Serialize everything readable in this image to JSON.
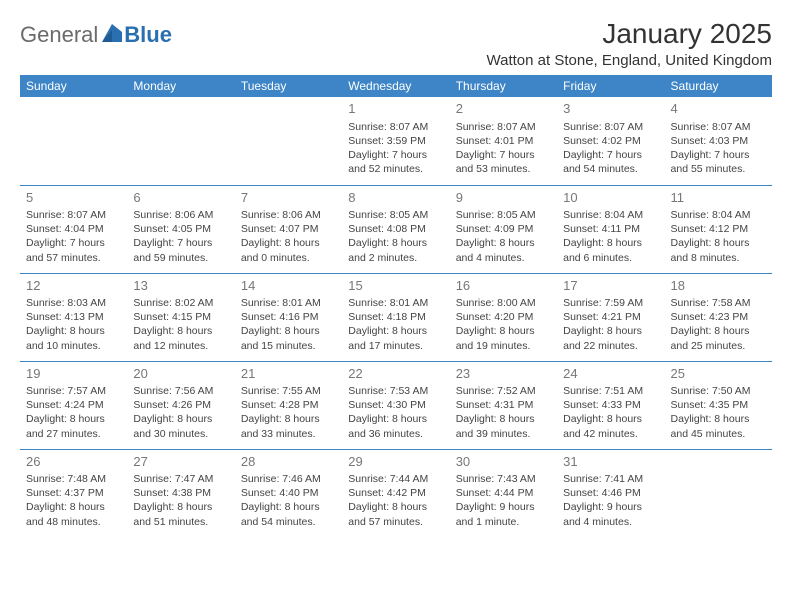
{
  "logo": {
    "text1": "General",
    "text2": "Blue",
    "text1_color": "#6b6b6b",
    "text2_color": "#2a6fb0"
  },
  "title": "January 2025",
  "location": "Watton at Stone, England, United Kingdom",
  "colors": {
    "header_bg": "#3d85c6",
    "header_text": "#ffffff",
    "row_border": "#3d85c6",
    "daynum": "#777777",
    "body_text": "#444444",
    "page_bg": "#ffffff"
  },
  "day_headers": [
    "Sunday",
    "Monday",
    "Tuesday",
    "Wednesday",
    "Thursday",
    "Friday",
    "Saturday"
  ],
  "weeks": [
    [
      null,
      null,
      null,
      {
        "n": "1",
        "sunrise": "Sunrise: 8:07 AM",
        "sunset": "Sunset: 3:59 PM",
        "day1": "Daylight: 7 hours",
        "day2": "and 52 minutes."
      },
      {
        "n": "2",
        "sunrise": "Sunrise: 8:07 AM",
        "sunset": "Sunset: 4:01 PM",
        "day1": "Daylight: 7 hours",
        "day2": "and 53 minutes."
      },
      {
        "n": "3",
        "sunrise": "Sunrise: 8:07 AM",
        "sunset": "Sunset: 4:02 PM",
        "day1": "Daylight: 7 hours",
        "day2": "and 54 minutes."
      },
      {
        "n": "4",
        "sunrise": "Sunrise: 8:07 AM",
        "sunset": "Sunset: 4:03 PM",
        "day1": "Daylight: 7 hours",
        "day2": "and 55 minutes."
      }
    ],
    [
      {
        "n": "5",
        "sunrise": "Sunrise: 8:07 AM",
        "sunset": "Sunset: 4:04 PM",
        "day1": "Daylight: 7 hours",
        "day2": "and 57 minutes."
      },
      {
        "n": "6",
        "sunrise": "Sunrise: 8:06 AM",
        "sunset": "Sunset: 4:05 PM",
        "day1": "Daylight: 7 hours",
        "day2": "and 59 minutes."
      },
      {
        "n": "7",
        "sunrise": "Sunrise: 8:06 AM",
        "sunset": "Sunset: 4:07 PM",
        "day1": "Daylight: 8 hours",
        "day2": "and 0 minutes."
      },
      {
        "n": "8",
        "sunrise": "Sunrise: 8:05 AM",
        "sunset": "Sunset: 4:08 PM",
        "day1": "Daylight: 8 hours",
        "day2": "and 2 minutes."
      },
      {
        "n": "9",
        "sunrise": "Sunrise: 8:05 AM",
        "sunset": "Sunset: 4:09 PM",
        "day1": "Daylight: 8 hours",
        "day2": "and 4 minutes."
      },
      {
        "n": "10",
        "sunrise": "Sunrise: 8:04 AM",
        "sunset": "Sunset: 4:11 PM",
        "day1": "Daylight: 8 hours",
        "day2": "and 6 minutes."
      },
      {
        "n": "11",
        "sunrise": "Sunrise: 8:04 AM",
        "sunset": "Sunset: 4:12 PM",
        "day1": "Daylight: 8 hours",
        "day2": "and 8 minutes."
      }
    ],
    [
      {
        "n": "12",
        "sunrise": "Sunrise: 8:03 AM",
        "sunset": "Sunset: 4:13 PM",
        "day1": "Daylight: 8 hours",
        "day2": "and 10 minutes."
      },
      {
        "n": "13",
        "sunrise": "Sunrise: 8:02 AM",
        "sunset": "Sunset: 4:15 PM",
        "day1": "Daylight: 8 hours",
        "day2": "and 12 minutes."
      },
      {
        "n": "14",
        "sunrise": "Sunrise: 8:01 AM",
        "sunset": "Sunset: 4:16 PM",
        "day1": "Daylight: 8 hours",
        "day2": "and 15 minutes."
      },
      {
        "n": "15",
        "sunrise": "Sunrise: 8:01 AM",
        "sunset": "Sunset: 4:18 PM",
        "day1": "Daylight: 8 hours",
        "day2": "and 17 minutes."
      },
      {
        "n": "16",
        "sunrise": "Sunrise: 8:00 AM",
        "sunset": "Sunset: 4:20 PM",
        "day1": "Daylight: 8 hours",
        "day2": "and 19 minutes."
      },
      {
        "n": "17",
        "sunrise": "Sunrise: 7:59 AM",
        "sunset": "Sunset: 4:21 PM",
        "day1": "Daylight: 8 hours",
        "day2": "and 22 minutes."
      },
      {
        "n": "18",
        "sunrise": "Sunrise: 7:58 AM",
        "sunset": "Sunset: 4:23 PM",
        "day1": "Daylight: 8 hours",
        "day2": "and 25 minutes."
      }
    ],
    [
      {
        "n": "19",
        "sunrise": "Sunrise: 7:57 AM",
        "sunset": "Sunset: 4:24 PM",
        "day1": "Daylight: 8 hours",
        "day2": "and 27 minutes."
      },
      {
        "n": "20",
        "sunrise": "Sunrise: 7:56 AM",
        "sunset": "Sunset: 4:26 PM",
        "day1": "Daylight: 8 hours",
        "day2": "and 30 minutes."
      },
      {
        "n": "21",
        "sunrise": "Sunrise: 7:55 AM",
        "sunset": "Sunset: 4:28 PM",
        "day1": "Daylight: 8 hours",
        "day2": "and 33 minutes."
      },
      {
        "n": "22",
        "sunrise": "Sunrise: 7:53 AM",
        "sunset": "Sunset: 4:30 PM",
        "day1": "Daylight: 8 hours",
        "day2": "and 36 minutes."
      },
      {
        "n": "23",
        "sunrise": "Sunrise: 7:52 AM",
        "sunset": "Sunset: 4:31 PM",
        "day1": "Daylight: 8 hours",
        "day2": "and 39 minutes."
      },
      {
        "n": "24",
        "sunrise": "Sunrise: 7:51 AM",
        "sunset": "Sunset: 4:33 PM",
        "day1": "Daylight: 8 hours",
        "day2": "and 42 minutes."
      },
      {
        "n": "25",
        "sunrise": "Sunrise: 7:50 AM",
        "sunset": "Sunset: 4:35 PM",
        "day1": "Daylight: 8 hours",
        "day2": "and 45 minutes."
      }
    ],
    [
      {
        "n": "26",
        "sunrise": "Sunrise: 7:48 AM",
        "sunset": "Sunset: 4:37 PM",
        "day1": "Daylight: 8 hours",
        "day2": "and 48 minutes."
      },
      {
        "n": "27",
        "sunrise": "Sunrise: 7:47 AM",
        "sunset": "Sunset: 4:38 PM",
        "day1": "Daylight: 8 hours",
        "day2": "and 51 minutes."
      },
      {
        "n": "28",
        "sunrise": "Sunrise: 7:46 AM",
        "sunset": "Sunset: 4:40 PM",
        "day1": "Daylight: 8 hours",
        "day2": "and 54 minutes."
      },
      {
        "n": "29",
        "sunrise": "Sunrise: 7:44 AM",
        "sunset": "Sunset: 4:42 PM",
        "day1": "Daylight: 8 hours",
        "day2": "and 57 minutes."
      },
      {
        "n": "30",
        "sunrise": "Sunrise: 7:43 AM",
        "sunset": "Sunset: 4:44 PM",
        "day1": "Daylight: 9 hours",
        "day2": "and 1 minute."
      },
      {
        "n": "31",
        "sunrise": "Sunrise: 7:41 AM",
        "sunset": "Sunset: 4:46 PM",
        "day1": "Daylight: 9 hours",
        "day2": "and 4 minutes."
      },
      null
    ]
  ]
}
